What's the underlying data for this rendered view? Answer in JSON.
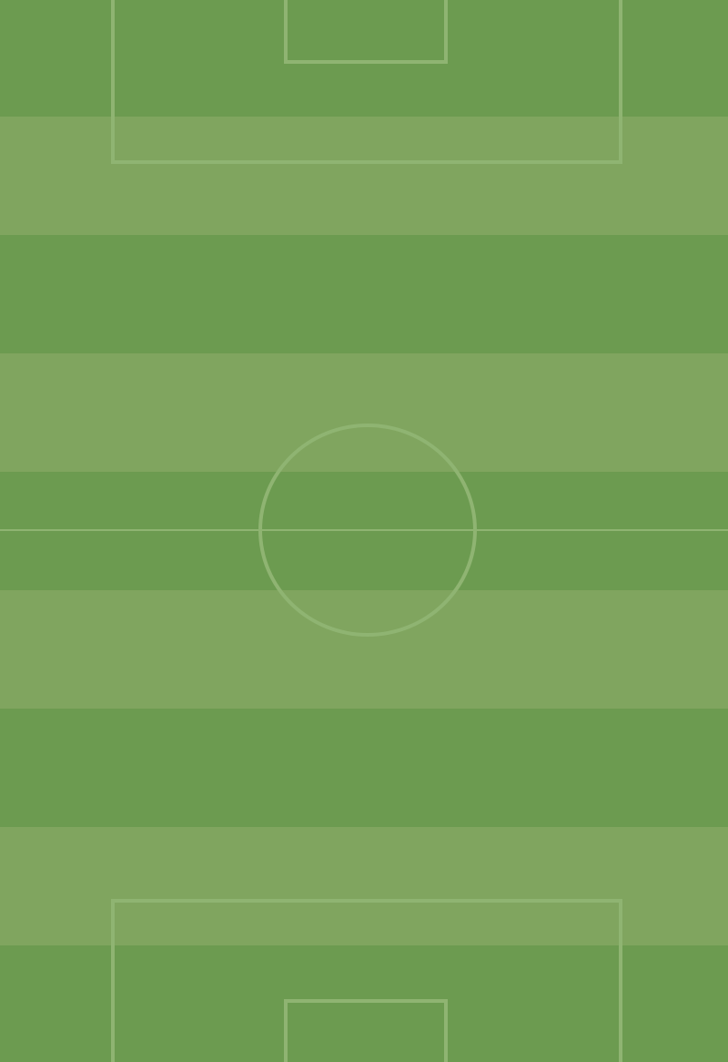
{
  "pitch": {
    "colors": {
      "dark_stripe": "#6c9b50",
      "light_stripe": "#80a55f",
      "line": "#8fb472"
    },
    "stripe_pattern": [
      "dark",
      "light",
      "dark",
      "light",
      "dark",
      "light",
      "dark",
      "light",
      "dark",
      "light"
    ]
  }
}
